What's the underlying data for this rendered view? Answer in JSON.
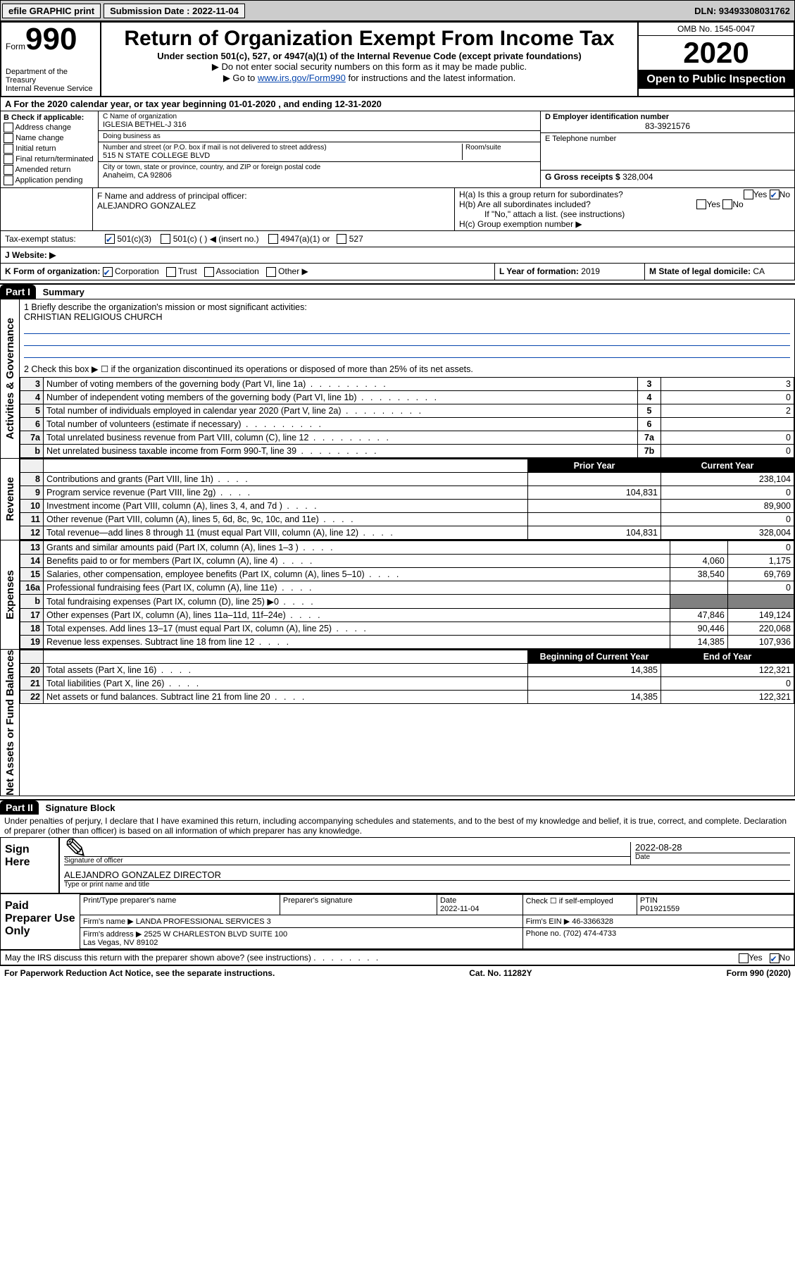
{
  "topbar": {
    "efile": "efile GRAPHIC print",
    "submission_label": "Submission Date : 2022-11-04",
    "dln": "DLN: 93493308031762"
  },
  "header": {
    "form_word": "Form",
    "form_number": "990",
    "dept": "Department of the Treasury\nInternal Revenue Service",
    "title": "Return of Organization Exempt From Income Tax",
    "subtitle": "Under section 501(c), 527, or 4947(a)(1) of the Internal Revenue Code (except private foundations)",
    "note1": "▶ Do not enter social security numbers on this form as it may be made public.",
    "note2_pre": "▶ Go to ",
    "note2_link": "www.irs.gov/Form990",
    "note2_post": " for instructions and the latest information.",
    "omb": "OMB No. 1545-0047",
    "year": "2020",
    "inspection": "Open to Public Inspection"
  },
  "rowA": "A For the 2020 calendar year, or tax year beginning 01-01-2020   , and ending 12-31-2020",
  "boxB": {
    "title": "B Check if applicable:",
    "items": [
      "Address change",
      "Name change",
      "Initial return",
      "Final return/terminated",
      "Amended return",
      "Application pending"
    ]
  },
  "boxC": {
    "name_label": "C Name of organization",
    "name": "IGLESIA BETHEL-J 316",
    "dba_label": "Doing business as",
    "dba": "",
    "addr_label": "Number and street (or P.O. box if mail is not delivered to street address)",
    "room_label": "Room/suite",
    "addr": "515 N STATE COLLEGE BLVD",
    "city_label": "City or town, state or province, country, and ZIP or foreign postal code",
    "city": "Anaheim, CA  92806"
  },
  "boxD": {
    "label": "D Employer identification number",
    "value": "83-3921576"
  },
  "boxE": {
    "label": "E Telephone number",
    "value": ""
  },
  "boxG": {
    "label": "G Gross receipts $",
    "value": "328,004"
  },
  "boxF": {
    "label": "F Name and address of principal officer:",
    "value": "ALEJANDRO GONZALEZ"
  },
  "boxH": {
    "a": "H(a)  Is this a group return for subordinates?",
    "b": "H(b)  Are all subordinates included?",
    "bnote": "If \"No,\" attach a list. (see instructions)",
    "c": "H(c)  Group exemption number ▶",
    "yes": "Yes",
    "no": "No"
  },
  "taxexempt": {
    "label": "Tax-exempt status:",
    "opts": [
      "501(c)(3)",
      "501(c) (  ) ◀ (insert no.)",
      "4947(a)(1) or",
      "527"
    ]
  },
  "website": {
    "label": "J   Website: ▶",
    "value": ""
  },
  "rowK": {
    "label": "K Form of organization:",
    "opts": [
      "Corporation",
      "Trust",
      "Association",
      "Other ▶"
    ],
    "L_label": "L Year of formation:",
    "L_value": "2019",
    "M_label": "M State of legal domicile:",
    "M_value": "CA"
  },
  "part1": {
    "tab": "Part I",
    "title": "Summary",
    "q1": "1  Briefly describe the organization's mission or most significant activities:",
    "mission": "CRHISTIAN RELIGIOUS CHURCH",
    "q2": "2   Check this box ▶ ☐  if the organization discontinued its operations or disposed of more than 25% of its net assets."
  },
  "activities": {
    "rows": [
      {
        "n": "3",
        "text": "Number of voting members of the governing body (Part VI, line 1a)",
        "box": "3",
        "val": "3"
      },
      {
        "n": "4",
        "text": "Number of independent voting members of the governing body (Part VI, line 1b)",
        "box": "4",
        "val": "0"
      },
      {
        "n": "5",
        "text": "Total number of individuals employed in calendar year 2020 (Part V, line 2a)",
        "box": "5",
        "val": "2"
      },
      {
        "n": "6",
        "text": "Total number of volunteers (estimate if necessary)",
        "box": "6",
        "val": ""
      },
      {
        "n": "7a",
        "text": "Total unrelated business revenue from Part VIII, column (C), line 12",
        "box": "7a",
        "val": "0"
      },
      {
        "n": "b",
        "text": "Net unrelated business taxable income from Form 990-T, line 39",
        "box": "7b",
        "val": "0"
      }
    ]
  },
  "revenue": {
    "headers": {
      "prior": "Prior Year",
      "current": "Current Year"
    },
    "rows": [
      {
        "n": "8",
        "text": "Contributions and grants (Part VIII, line 1h)",
        "prior": "",
        "current": "238,104"
      },
      {
        "n": "9",
        "text": "Program service revenue (Part VIII, line 2g)",
        "prior": "104,831",
        "current": "0"
      },
      {
        "n": "10",
        "text": "Investment income (Part VIII, column (A), lines 3, 4, and 7d )",
        "prior": "",
        "current": "89,900"
      },
      {
        "n": "11",
        "text": "Other revenue (Part VIII, column (A), lines 5, 6d, 8c, 9c, 10c, and 11e)",
        "prior": "",
        "current": "0"
      },
      {
        "n": "12",
        "text": "Total revenue—add lines 8 through 11 (must equal Part VIII, column (A), line 12)",
        "prior": "104,831",
        "current": "328,004"
      }
    ]
  },
  "expenses": {
    "rows": [
      {
        "n": "13",
        "text": "Grants and similar amounts paid (Part IX, column (A), lines 1–3 )",
        "prior": "",
        "current": "0"
      },
      {
        "n": "14",
        "text": "Benefits paid to or for members (Part IX, column (A), line 4)",
        "prior": "4,060",
        "current": "1,175"
      },
      {
        "n": "15",
        "text": "Salaries, other compensation, employee benefits (Part IX, column (A), lines 5–10)",
        "prior": "38,540",
        "current": "69,769"
      },
      {
        "n": "16a",
        "text": "Professional fundraising fees (Part IX, column (A), line 11e)",
        "prior": "",
        "current": "0"
      },
      {
        "n": "b",
        "text": "Total fundraising expenses (Part IX, column (D), line 25) ▶0",
        "prior": "SHADED",
        "current": "SHADED"
      },
      {
        "n": "17",
        "text": "Other expenses (Part IX, column (A), lines 11a–11d, 11f–24e)",
        "prior": "47,846",
        "current": "149,124"
      },
      {
        "n": "18",
        "text": "Total expenses. Add lines 13–17 (must equal Part IX, column (A), line 25)",
        "prior": "90,446",
        "current": "220,068"
      },
      {
        "n": "19",
        "text": "Revenue less expenses. Subtract line 18 from line 12",
        "prior": "14,385",
        "current": "107,936"
      }
    ]
  },
  "netassets": {
    "headers": {
      "begin": "Beginning of Current Year",
      "end": "End of Year"
    },
    "rows": [
      {
        "n": "20",
        "text": "Total assets (Part X, line 16)",
        "begin": "14,385",
        "end": "122,321"
      },
      {
        "n": "21",
        "text": "Total liabilities (Part X, line 26)",
        "begin": "",
        "end": "0"
      },
      {
        "n": "22",
        "text": "Net assets or fund balances. Subtract line 21 from line 20",
        "begin": "14,385",
        "end": "122,321"
      }
    ]
  },
  "part2": {
    "tab": "Part II",
    "title": "Signature Block",
    "text": "Under penalties of perjury, I declare that I have examined this return, including accompanying schedules and statements, and to the best of my knowledge and belief, it is true, correct, and complete. Declaration of preparer (other than officer) is based on all information of which preparer has any knowledge."
  },
  "sign": {
    "lead": "Sign Here",
    "sig_label": "Signature of officer",
    "date_label": "Date",
    "sig_date": "2022-08-28",
    "name": "ALEJANDRO GONZALEZ  DIRECTOR",
    "name_label": "Type or print name and title"
  },
  "preparer": {
    "lead": "Paid Preparer Use Only",
    "cols": {
      "print": "Print/Type preparer's name",
      "sig": "Preparer's signature",
      "date": "Date",
      "check": "Check ☐ if self-employed",
      "ptin": "PTIN"
    },
    "date": "2022-11-04",
    "ptin": "P01921559",
    "firm_label": "Firm's name   ▶",
    "firm": "LANDA PROFESSIONAL SERVICES 3",
    "ein_label": "Firm's EIN ▶",
    "ein": "46-3366328",
    "addr_label": "Firm's address ▶",
    "addr": "2525 W CHARLESTON BLVD SUITE 100\nLas Vegas, NV  89102",
    "phone_label": "Phone no.",
    "phone": "(702) 474-4733"
  },
  "discuss": {
    "text": "May the IRS discuss this return with the preparer shown above? (see instructions)",
    "yes": "Yes",
    "no": "No"
  },
  "footer": {
    "left": "For Paperwork Reduction Act Notice, see the separate instructions.",
    "mid": "Cat. No. 11282Y",
    "right": "Form 990 (2020)"
  }
}
